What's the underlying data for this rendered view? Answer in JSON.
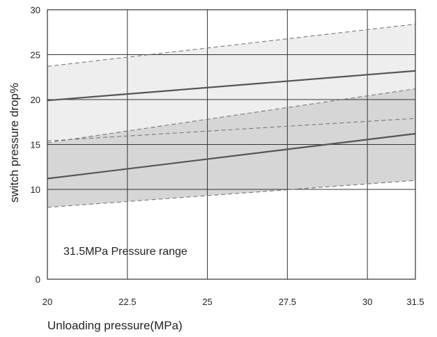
{
  "chart_data": {
    "type": "line",
    "title": "",
    "xlabel": "Unloading pressure(MPa)",
    "ylabel": "switch pressure drop%",
    "xlim": [
      20,
      31.5
    ],
    "ylim": [
      0,
      30
    ],
    "x_ticks": [
      20,
      22.5,
      25,
      27.5,
      30,
      31.5
    ],
    "x_tick_labels": [
      "20",
      "22.5",
      "25",
      "27.5",
      "30",
      "31.5"
    ],
    "y_ticks": [
      0,
      10,
      15,
      20,
      25,
      30
    ],
    "y_tick_labels": [
      "0",
      "10",
      "15",
      "20",
      "25",
      "30"
    ],
    "grid": true,
    "bands": [
      {
        "fill": "#eeeeee",
        "upper": {
          "x": [
            20,
            31.5
          ],
          "y": [
            23.7,
            28.4
          ]
        },
        "lower": {
          "x": [
            20,
            31.5
          ],
          "y": [
            15.4,
            17.9
          ]
        }
      },
      {
        "fill": "#d6d6d6",
        "upper": {
          "x": [
            20,
            31.5
          ],
          "y": [
            15.2,
            21.2
          ]
        },
        "lower": {
          "x": [
            20,
            31.5
          ],
          "y": [
            8.0,
            11.0
          ]
        }
      }
    ],
    "series": [
      {
        "x": [
          20,
          31.5
        ],
        "y": [
          19.9,
          23.2
        ],
        "color": "#555555"
      },
      {
        "x": [
          20,
          31.5
        ],
        "y": [
          11.2,
          16.2
        ],
        "color": "#555555"
      }
    ],
    "annotations": [
      {
        "text": "31.5MPa Pressure range",
        "x": 20.5,
        "y": 2.7
      }
    ]
  }
}
